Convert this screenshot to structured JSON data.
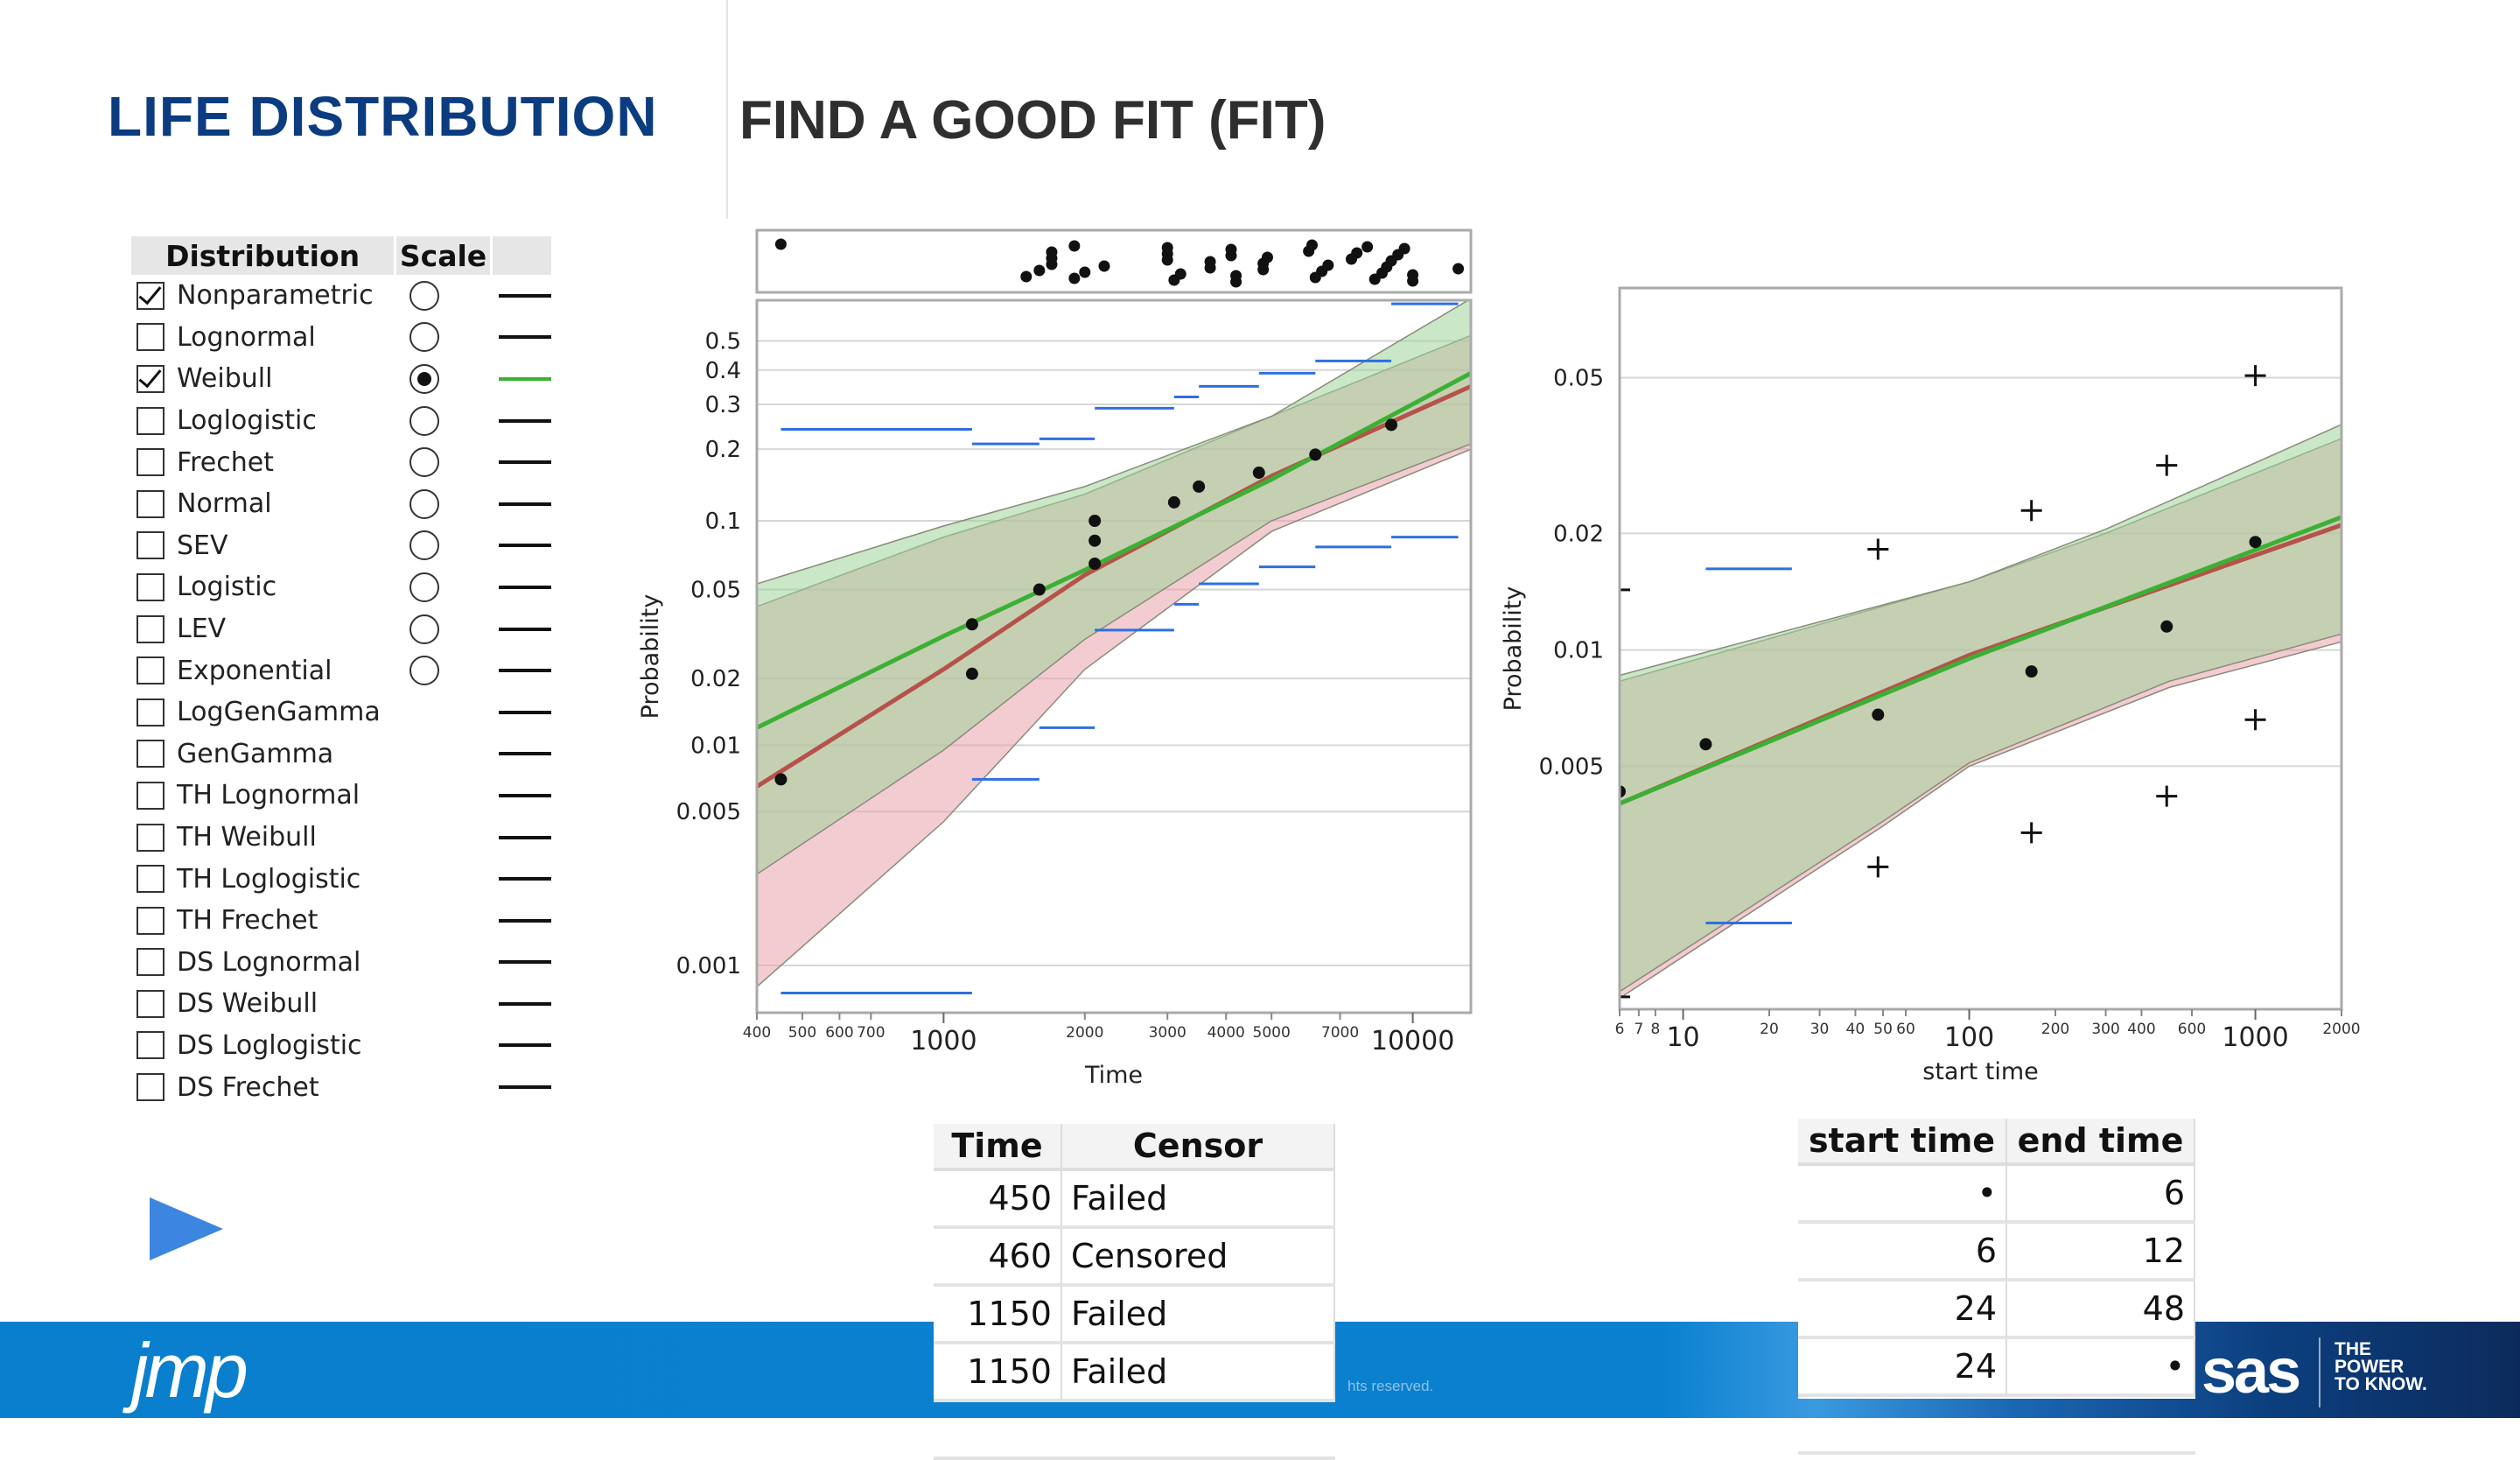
{
  "title": {
    "main": "LIFE DISTRIBUTION",
    "sub": "FIND A GOOD FIT (FIT)"
  },
  "distribution_panel": {
    "headers": [
      "Distribution",
      "Scale"
    ],
    "rows": [
      {
        "label": "Nonparametric",
        "checked": true,
        "radio": "off",
        "line_color": "#111111"
      },
      {
        "label": "Lognormal",
        "checked": false,
        "radio": "off",
        "line_color": "#111111"
      },
      {
        "label": "Weibull",
        "checked": true,
        "radio": "on",
        "line_color": "#3cb034"
      },
      {
        "label": "Loglogistic",
        "checked": false,
        "radio": "off",
        "line_color": "#111111"
      },
      {
        "label": "Frechet",
        "checked": false,
        "radio": "off",
        "line_color": "#111111"
      },
      {
        "label": "Normal",
        "checked": false,
        "radio": "off",
        "line_color": "#111111"
      },
      {
        "label": "SEV",
        "checked": false,
        "radio": "off",
        "line_color": "#111111"
      },
      {
        "label": "Logistic",
        "checked": false,
        "radio": "off",
        "line_color": "#111111"
      },
      {
        "label": "LEV",
        "checked": false,
        "radio": "off",
        "line_color": "#111111"
      },
      {
        "label": "Exponential",
        "checked": false,
        "radio": "off",
        "line_color": "#111111"
      },
      {
        "label": "LogGenGamma",
        "checked": false,
        "radio": "none",
        "line_color": "#111111"
      },
      {
        "label": "GenGamma",
        "checked": false,
        "radio": "none",
        "line_color": "#111111"
      },
      {
        "label": "TH Lognormal",
        "checked": false,
        "radio": "none",
        "line_color": "#111111"
      },
      {
        "label": "TH Weibull",
        "checked": false,
        "radio": "none",
        "line_color": "#111111"
      },
      {
        "label": "TH Loglogistic",
        "checked": false,
        "radio": "none",
        "line_color": "#111111"
      },
      {
        "label": "TH Frechet",
        "checked": false,
        "radio": "none",
        "line_color": "#111111"
      },
      {
        "label": "DS Lognormal",
        "checked": false,
        "radio": "none",
        "line_color": "#111111"
      },
      {
        "label": "DS Weibull",
        "checked": false,
        "radio": "none",
        "line_color": "#111111"
      },
      {
        "label": "DS Loglogistic",
        "checked": false,
        "radio": "none",
        "line_color": "#111111"
      },
      {
        "label": "DS Frechet",
        "checked": false,
        "radio": "none",
        "line_color": "#111111"
      }
    ]
  },
  "censor_table": {
    "headers": [
      "Time",
      "Censor"
    ],
    "rows": [
      [
        "450",
        "Failed"
      ],
      [
        "460",
        "Censored"
      ],
      [
        "1150",
        "Failed"
      ],
      [
        "1150",
        "Failed"
      ]
    ]
  },
  "interval_table": {
    "headers": [
      "start time",
      "end time"
    ],
    "rows": [
      [
        "•",
        "6"
      ],
      [
        "6",
        "12"
      ],
      [
        "24",
        "48"
      ],
      [
        "24",
        "•"
      ]
    ]
  },
  "footer": {
    "logo": "jmp",
    "copyright_fragment": "hts reserved.",
    "sas_logo": "sas",
    "tagline": [
      "THE",
      "POWER",
      "TO KNOW."
    ]
  },
  "colors": {
    "title_blue": "#0b3c80",
    "weibull_green": "#3cb034",
    "lognormal_red": "#b5524a",
    "interval_blue": "#2f6fe0",
    "footer_blue": "#0a7fcd"
  },
  "chart_data": [
    {
      "type": "scatter",
      "xlabel": "Time",
      "ylabel": "Probability",
      "xscale": "log",
      "yscale": "weibull-probability",
      "xlim": [
        400,
        13300
      ],
      "ylim": [
        0.00061,
        0.654
      ],
      "grid": true,
      "xticks_minor": [
        400,
        500,
        600,
        700,
        2000,
        3000,
        4000,
        5000,
        7000
      ],
      "xticks_major": [
        1000,
        10000
      ],
      "yticks": [
        0.001,
        0.005,
        0.01,
        0.02,
        0.05,
        0.1,
        0.2,
        0.3,
        0.4,
        0.5
      ],
      "points": [
        [
          450,
          0.007
        ],
        [
          1150,
          0.035
        ],
        [
          1150,
          0.021
        ],
        [
          1600,
          0.05
        ],
        [
          2100,
          0.065
        ],
        [
          2100,
          0.082
        ],
        [
          2100,
          0.1
        ],
        [
          3100,
          0.12
        ],
        [
          3500,
          0.14
        ],
        [
          4700,
          0.16
        ],
        [
          6200,
          0.19
        ],
        [
          9000,
          0.25
        ]
      ],
      "fit_lines": [
        {
          "color": "#b5524a",
          "points": [
            [
              400,
              0.0065
            ],
            [
              1000,
              0.022
            ],
            [
              2000,
              0.058
            ],
            [
              5000,
              0.155
            ],
            [
              13300,
              0.35
            ]
          ]
        },
        {
          "color": "#3cb034",
          "points": [
            [
              400,
              0.012
            ],
            [
              1000,
              0.031
            ],
            [
              2000,
              0.061
            ],
            [
              5000,
              0.15
            ],
            [
              13300,
              0.39
            ]
          ]
        }
      ],
      "bands": [
        {
          "color": "#e9a3ab",
          "upper": [
            [
              400,
              0.042
            ],
            [
              1000,
              0.085
            ],
            [
              2000,
              0.13
            ],
            [
              5000,
              0.27
            ],
            [
              13300,
              0.52
            ]
          ],
          "lower": [
            [
              400,
              0.0008
            ],
            [
              1000,
              0.0045
            ],
            [
              2000,
              0.022
            ],
            [
              5000,
              0.09
            ],
            [
              13300,
              0.2
            ]
          ]
        },
        {
          "color": "#9fd49a",
          "upper": [
            [
              400,
              0.053
            ],
            [
              1000,
              0.095
            ],
            [
              2000,
              0.14
            ],
            [
              5000,
              0.27
            ],
            [
              13300,
              0.66
            ]
          ],
          "lower": [
            [
              400,
              0.0026
            ],
            [
              1000,
              0.0095
            ],
            [
              2000,
              0.03
            ],
            [
              5000,
              0.1
            ],
            [
              13300,
              0.21
            ]
          ]
        }
      ],
      "interval_segments": [
        [
          450,
          1150,
          0.24
        ],
        [
          1150,
          1600,
          0.21
        ],
        [
          1600,
          2100,
          0.22
        ],
        [
          2100,
          3100,
          0.29
        ],
        [
          3100,
          3500,
          0.32
        ],
        [
          3500,
          4700,
          0.35
        ],
        [
          4700,
          6200,
          0.39
        ],
        [
          6200,
          9000,
          0.43
        ],
        [
          9000,
          12500,
          0.64
        ],
        [
          450,
          1150,
          0.00075
        ],
        [
          1150,
          1600,
          0.007
        ],
        [
          1600,
          2100,
          0.012
        ],
        [
          2100,
          3100,
          0.033
        ],
        [
          3100,
          3500,
          0.043
        ],
        [
          3500,
          4700,
          0.053
        ],
        [
          4700,
          6200,
          0.063
        ],
        [
          6200,
          9000,
          0.077
        ],
        [
          9000,
          12500,
          0.085
        ]
      ],
      "strip_points": [
        450,
        1500,
        1600,
        1700,
        1700,
        1700,
        1900,
        1900,
        2000,
        2200,
        3000,
        3000,
        3000,
        3100,
        3200,
        3700,
        3700,
        4100,
        4100,
        4200,
        4200,
        4800,
        4800,
        4900,
        6000,
        6100,
        6200,
        6400,
        6600,
        7400,
        7600,
        8000,
        8300,
        8600,
        8800,
        9000,
        9300,
        9600,
        10000,
        10000,
        12500
      ]
    },
    {
      "type": "scatter",
      "xlabel": "start time",
      "ylabel": "Probability",
      "xscale": "log",
      "yscale": "weibull-probability",
      "xlim": [
        6,
        2000
      ],
      "ylim": [
        0.00117,
        0.084
      ],
      "grid": true,
      "xticks_minor": [
        6,
        7,
        8,
        20,
        30,
        40,
        50,
        60,
        200,
        300,
        400,
        600,
        2000
      ],
      "xticks_major": [
        10,
        100,
        1000
      ],
      "yticks": [
        0.005,
        0.01,
        0.02,
        0.05
      ],
      "points": [
        [
          6,
          0.0043
        ],
        [
          12,
          0.0057
        ],
        [
          48,
          0.0068
        ],
        [
          165,
          0.0088
        ],
        [
          490,
          0.0115
        ],
        [
          1000,
          0.019
        ]
      ],
      "fit_lines": [
        {
          "color": "#b5524a",
          "points": [
            [
              6,
              0.004
            ],
            [
              100,
              0.0097
            ],
            [
              2000,
              0.021
            ]
          ]
        },
        {
          "color": "#3cb034",
          "points": [
            [
              6,
              0.004
            ],
            [
              100,
              0.0095
            ],
            [
              2000,
              0.022
            ]
          ]
        }
      ],
      "bands": [
        {
          "color": "#e9a3ab",
          "upper": [
            [
              6,
              0.0083
            ],
            [
              100,
              0.015
            ],
            [
              300,
              0.02
            ],
            [
              2000,
              0.035
            ]
          ],
          "lower": [
            [
              6,
              0.00125
            ],
            [
              50,
              0.0035
            ],
            [
              100,
              0.005
            ],
            [
              500,
              0.008
            ],
            [
              2000,
              0.0105
            ]
          ]
        },
        {
          "color": "#9fd49a",
          "upper": [
            [
              6,
              0.0086
            ],
            [
              100,
              0.015
            ],
            [
              300,
              0.0205
            ],
            [
              2000,
              0.038
            ]
          ],
          "lower": [
            [
              6,
              0.0013
            ],
            [
              50,
              0.0036
            ],
            [
              100,
              0.0051
            ],
            [
              500,
              0.0083
            ],
            [
              2000,
              0.011
            ]
          ]
        }
      ],
      "interval_segments": [
        [
          12,
          24,
          0.0162
        ],
        [
          12,
          24,
          0.00196
        ]
      ],
      "plus_markers": [
        [
          6,
          0.0143
        ],
        [
          6,
          0.00126
        ],
        [
          48,
          0.0182
        ],
        [
          48,
          0.00274
        ],
        [
          165,
          0.0229
        ],
        [
          165,
          0.00336
        ],
        [
          490,
          0.0299
        ],
        [
          490,
          0.00418
        ],
        [
          1000,
          0.0506
        ],
        [
          1000,
          0.0066
        ]
      ]
    }
  ]
}
